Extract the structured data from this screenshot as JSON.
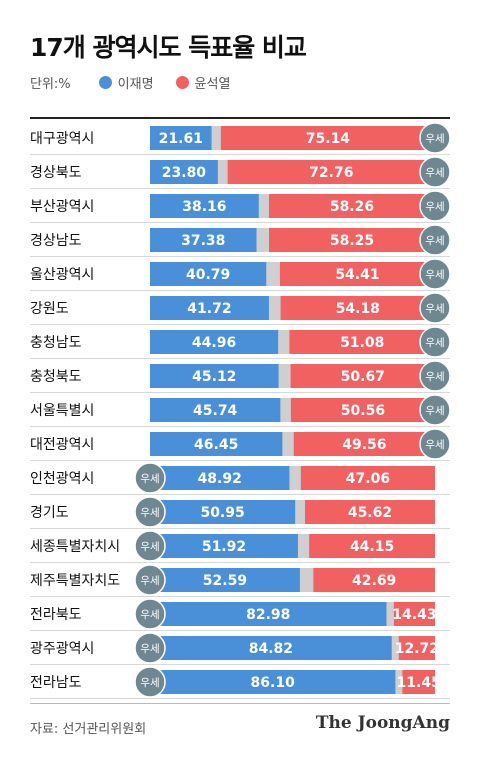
{
  "page": {
    "title": "17개 광역시도 득표율 비교",
    "unit_label": "단위:%",
    "source": "자료: 선거관리위원회",
    "brand": "The JoongAng",
    "win_badge": "우세"
  },
  "colors": {
    "lee": "#4a90d9",
    "yoon": "#f26161",
    "other": "#cfcfcf",
    "badge": "#6e8790",
    "row_line": "#d8d8d8"
  },
  "chart_data": {
    "type": "bar",
    "stacked": true,
    "horizontal": true,
    "xlim": [
      0,
      100
    ],
    "categories": [
      "대구광역시",
      "경상북도",
      "부산광역시",
      "경상남도",
      "울산광역시",
      "강원도",
      "충청남도",
      "충청북도",
      "서울특별시",
      "대전광역시",
      "인천광역시",
      "경기도",
      "세종특별자치시",
      "제주특별자치도",
      "전라북도",
      "광주광역시",
      "전라남도"
    ],
    "series": [
      {
        "name": "이재명",
        "values": [
          21.61,
          23.8,
          38.16,
          37.38,
          40.79,
          41.72,
          44.96,
          45.12,
          45.74,
          46.45,
          48.92,
          50.95,
          51.92,
          52.59,
          82.98,
          84.82,
          86.1
        ]
      },
      {
        "name": "윤석열",
        "values": [
          75.14,
          72.76,
          58.26,
          58.25,
          54.41,
          54.18,
          51.08,
          50.67,
          50.56,
          49.56,
          47.06,
          45.62,
          44.15,
          42.69,
          14.43,
          12.72,
          11.45
        ]
      }
    ],
    "value_labels": [
      [
        "21.61",
        "75.14"
      ],
      [
        "23.80",
        "72.76"
      ],
      [
        "38.16",
        "58.26"
      ],
      [
        "37.38",
        "58.25"
      ],
      [
        "40.79",
        "54.41"
      ],
      [
        "41.72",
        "54.18"
      ],
      [
        "44.96",
        "51.08"
      ],
      [
        "45.12",
        "50.67"
      ],
      [
        "45.74",
        "50.56"
      ],
      [
        "46.45",
        "49.56"
      ],
      [
        "48.92",
        "47.06"
      ],
      [
        "50.95",
        "45.62"
      ],
      [
        "51.92",
        "44.15"
      ],
      [
        "52.59",
        "42.69"
      ],
      [
        "82.98",
        "14.43"
      ],
      [
        "84.82",
        "12.72"
      ],
      [
        "86.10",
        "11.45"
      ]
    ],
    "legend_position": "top-left"
  }
}
